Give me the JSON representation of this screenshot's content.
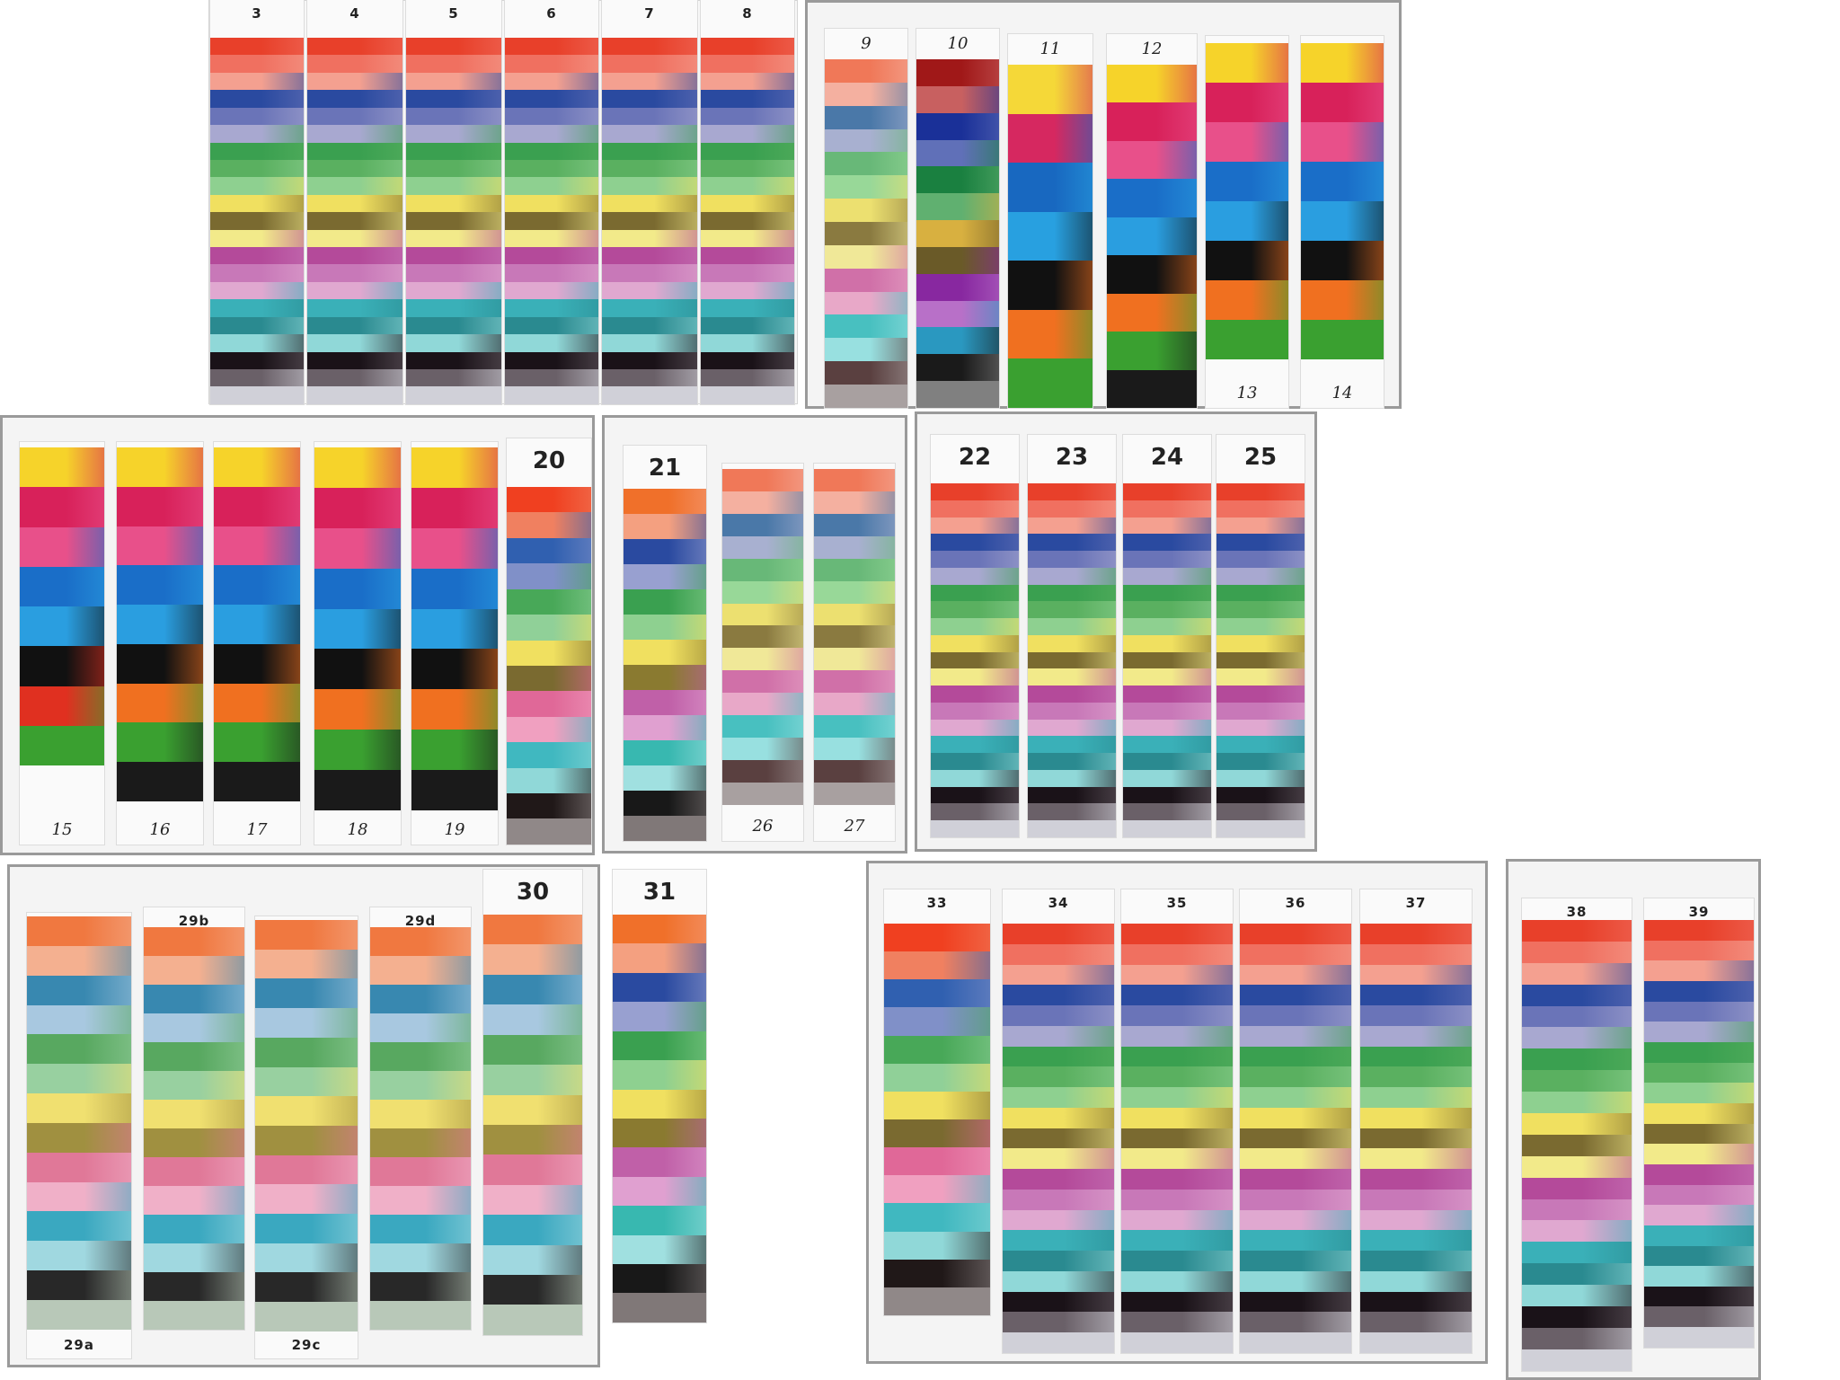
{
  "photo": {
    "caption": "",
    "labels": {
      "s3": "3",
      "s4": "4",
      "s5": "5",
      "s6": "6",
      "s7": "7",
      "s8": "8",
      "s9": "9",
      "s10": "10",
      "s11": "11",
      "s12": "12",
      "s13": "13",
      "s14": "14",
      "s15": "15",
      "s16": "16",
      "s17": "17",
      "s18": "18",
      "s19": "19",
      "s20": "20",
      "s21": "21",
      "s26": "26",
      "s27": "27",
      "s22": "22",
      "s23": "23",
      "s24": "24",
      "s25": "25",
      "s29a": "29a",
      "s29b": "29b",
      "s29c": "29c",
      "s29d": "29d",
      "s30": "30",
      "s31": "31",
      "s33": "33",
      "s34": "34",
      "s35": "35",
      "s36": "36",
      "s37": "37",
      "s38": "38",
      "s39": "39"
    },
    "palettes": {
      "standard": [
        "#e8402a",
        "#f07060",
        "#f4a090",
        "#2a4aa0",
        "#6a74b8",
        "#a8a8d0",
        "#3aa050",
        "#5ab060",
        "#8ed090",
        "#f0e060",
        "#7a6a30",
        "#f2ea8a",
        "#b44a9a",
        "#c878b8",
        "#e0a8d0",
        "#3ab0b8",
        "#2a8a90",
        "#90d8d8",
        "#1a1218",
        "#6a6068",
        "#d0d0d8"
      ],
      "marker": [
        "#f6d32a",
        "#d8215a",
        "#e8508a",
        "#1a6ec8",
        "#2a9ee0",
        "#111111",
        "#f07020",
        "#3aa030"
      ],
      "marker_red": [
        "#f6d32a",
        "#d8215a",
        "#e8508a",
        "#1a6ec8",
        "#2a9ee0",
        "#111111",
        "#e03020",
        "#3aa030"
      ],
      "marker_black_end": [
        "#f6d32a",
        "#d8215a",
        "#e8508a",
        "#1a6ec8",
        "#2a9ee0",
        "#111111",
        "#f07020",
        "#3aa030",
        "#1a1a1a"
      ],
      "early": [
        "#f5d838",
        "#d62860",
        "#1868c0",
        "#28a0e0",
        "#111111",
        "#f07020",
        "#3aa030"
      ],
      "pale": [
        "#f07858",
        "#f4b0a0",
        "#4a78a8",
        "#a8b0d0",
        "#68b878",
        "#98d898",
        "#ece070",
        "#8a7a40",
        "#f0e898",
        "#d070a8",
        "#e8a8c8",
        "#48c0c0",
        "#98e0e0",
        "#5a4040",
        "#a8a0a0"
      ],
      "dark": [
        "#a01818",
        "#c86060",
        "#1a3098",
        "#6070b8",
        "#1a8040",
        "#60b070",
        "#d8b040",
        "#6a5a28",
        "#8828a0",
        "#b870c8",
        "#2a98c0",
        "#1a1a1a",
        "#808080"
      ],
      "vivid": [
        "#f04020",
        "#f08060",
        "#3060b0",
        "#8090c8",
        "#48a858",
        "#90d098",
        "#f0e060",
        "#7a6a30",
        "#e06898",
        "#f0a0c0",
        "#40b8c0",
        "#90d8d8",
        "#201818",
        "#908888"
      ],
      "blue_stripe": [
        "#f0702a",
        "#f4a080",
        "#2a4aa0",
        "#98a0d0",
        "#3aa050",
        "#8ed090",
        "#f0e060",
        "#8a7a30",
        "#c060a8",
        "#e0a0d0",
        "#38b8b0",
        "#a0e0e0",
        "#181818",
        "#807878"
      ],
      "teal_end": [
        "#f07840",
        "#f4b090",
        "#3888b0",
        "#a8c8e0",
        "#58a860",
        "#98d0a0",
        "#f0e070",
        "#a09040",
        "#e07898",
        "#f0b0c8",
        "#3aa8c0",
        "#a0d8e0",
        "#282828",
        "#b8c8b8"
      ]
    }
  }
}
